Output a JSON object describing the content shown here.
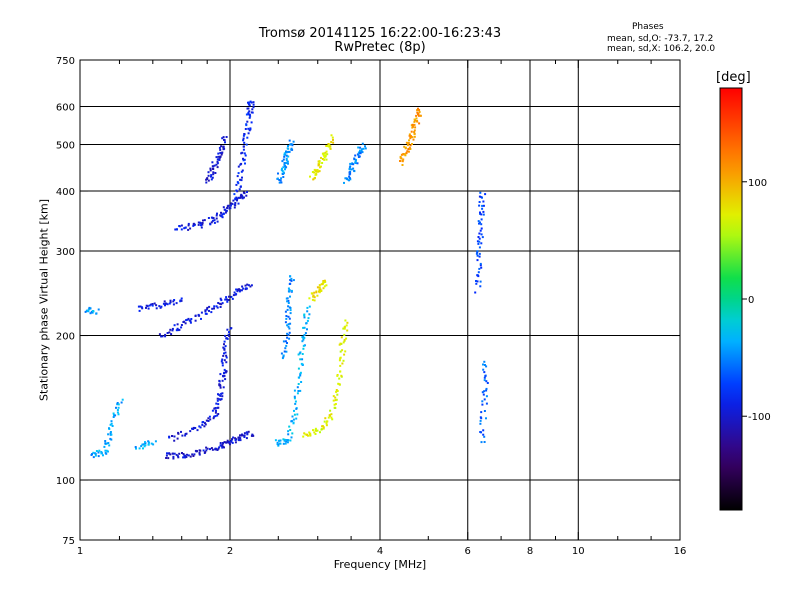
{
  "chart_data": {
    "type": "scatter",
    "title": "Tromsø 20141125 16:22:00-16:23:43",
    "subtitle": "RwPretec (8p)",
    "xlabel": "Frequency [MHz]",
    "ylabel": "Stationary phase Virtual Height [km]",
    "x_scale": "log2",
    "y_scale": "log",
    "xlim": [
      1,
      16
    ],
    "ylim": [
      75,
      750
    ],
    "x_ticks": [
      "1",
      "2",
      "4",
      "6",
      "8",
      "10",
      "16"
    ],
    "x_grid": [
      2,
      4,
      6,
      8,
      10
    ],
    "y_ticks": [
      "75",
      "100",
      "200",
      "300",
      "400",
      "500",
      "600",
      "750"
    ],
    "y_grid": [
      100,
      200,
      300,
      400,
      500,
      600
    ],
    "grid": true,
    "phases": {
      "heading": "Phases",
      "line_o": "mean, sd,O: -73.7, 17.2",
      "line_x": "mean, sd,X: 106.2, 20.0"
    },
    "colorbar": {
      "label": "[deg]",
      "ticks": [
        "100",
        "0",
        "-100"
      ],
      "range": [
        -180,
        180
      ],
      "colormap": "rainbow"
    },
    "traces": [
      {
        "name": "",
        "phase": -100,
        "points": [
          [
            1.48,
            113
          ],
          [
            1.6,
            113
          ],
          [
            1.75,
            115
          ],
          [
            1.9,
            118
          ],
          [
            2.0,
            121
          ],
          [
            2.1,
            123
          ],
          [
            2.2,
            126
          ]
        ]
      },
      {
        "name": "",
        "phase": -95,
        "points": [
          [
            1.5,
            122
          ],
          [
            1.7,
            128
          ],
          [
            1.85,
            137
          ],
          [
            1.9,
            150
          ],
          [
            1.93,
            165
          ],
          [
            1.95,
            185
          ],
          [
            1.98,
            210
          ]
        ]
      },
      {
        "name": "",
        "phase": -95,
        "points": [
          [
            1.45,
            200
          ],
          [
            1.6,
            212
          ],
          [
            1.75,
            222
          ],
          [
            1.9,
            235
          ],
          [
            2.05,
            248
          ],
          [
            2.2,
            258
          ]
        ]
      },
      {
        "name": "",
        "phase": -90,
        "points": [
          [
            1.3,
            228
          ],
          [
            1.45,
            232
          ],
          [
            1.6,
            240
          ]
        ]
      },
      {
        "name": "",
        "phase": -95,
        "points": [
          [
            1.55,
            335
          ],
          [
            1.7,
            340
          ],
          [
            1.85,
            350
          ],
          [
            1.95,
            365
          ],
          [
            2.05,
            380
          ],
          [
            2.15,
            400
          ]
        ]
      },
      {
        "name": "",
        "phase": -100,
        "points": [
          [
            1.8,
            420
          ],
          [
            1.85,
            450
          ],
          [
            1.9,
            480
          ],
          [
            1.95,
            520
          ]
        ]
      },
      {
        "name": "",
        "phase": -85,
        "points": [
          [
            2.05,
            390
          ],
          [
            2.1,
            450
          ],
          [
            2.15,
            520
          ],
          [
            2.18,
            580
          ],
          [
            2.2,
            620
          ]
        ]
      },
      {
        "name": "",
        "phase": -40,
        "points": [
          [
            1.02,
            228
          ],
          [
            1.08,
            226
          ]
        ]
      },
      {
        "name": "",
        "phase": -40,
        "points": [
          [
            1.05,
            113
          ],
          [
            1.12,
            115
          ],
          [
            1.15,
            130
          ],
          [
            1.2,
            150
          ]
        ]
      },
      {
        "name": "",
        "phase": -40,
        "points": [
          [
            1.3,
            118
          ],
          [
            1.4,
            120
          ]
        ]
      },
      {
        "name": "",
        "phase": -35,
        "points": [
          [
            2.45,
            120
          ],
          [
            2.6,
            121
          ],
          [
            2.7,
            140
          ],
          [
            2.75,
            170
          ],
          [
            2.8,
            200
          ],
          [
            2.85,
            230
          ]
        ]
      },
      {
        "name": "",
        "phase": -50,
        "points": [
          [
            2.55,
            180
          ],
          [
            2.6,
            210
          ],
          [
            2.62,
            240
          ],
          [
            2.65,
            270
          ]
        ]
      },
      {
        "name": "",
        "phase": -45,
        "points": [
          [
            2.5,
            420
          ],
          [
            2.55,
            450
          ],
          [
            2.6,
            480
          ],
          [
            2.65,
            510
          ]
        ]
      },
      {
        "name": "",
        "phase": 70,
        "points": [
          [
            2.8,
            124
          ],
          [
            3.0,
            128
          ],
          [
            3.2,
            138
          ],
          [
            3.3,
            160
          ],
          [
            3.35,
            190
          ],
          [
            3.4,
            215
          ]
        ]
      },
      {
        "name": "",
        "phase": 80,
        "points": [
          [
            2.9,
            240
          ],
          [
            3.0,
            250
          ],
          [
            3.1,
            262
          ]
        ]
      },
      {
        "name": "",
        "phase": 75,
        "points": [
          [
            2.9,
            430
          ],
          [
            3.0,
            450
          ],
          [
            3.1,
            480
          ],
          [
            3.2,
            520
          ]
        ]
      },
      {
        "name": "",
        "phase": -50,
        "points": [
          [
            3.4,
            420
          ],
          [
            3.5,
            450
          ],
          [
            3.6,
            480
          ],
          [
            3.7,
            500
          ]
        ]
      },
      {
        "name": "",
        "phase": 110,
        "points": [
          [
            4.4,
            460
          ],
          [
            4.5,
            490
          ],
          [
            4.6,
            520
          ],
          [
            4.7,
            560
          ],
          [
            4.8,
            600
          ]
        ]
      },
      {
        "name": "",
        "phase": -70,
        "points": [
          [
            6.25,
            250
          ],
          [
            6.3,
            300
          ],
          [
            6.35,
            350
          ],
          [
            6.4,
            400
          ]
        ]
      },
      {
        "name": "",
        "phase": -60,
        "points": [
          [
            6.4,
            120
          ],
          [
            6.45,
            150
          ],
          [
            6.5,
            180
          ]
        ]
      }
    ]
  }
}
